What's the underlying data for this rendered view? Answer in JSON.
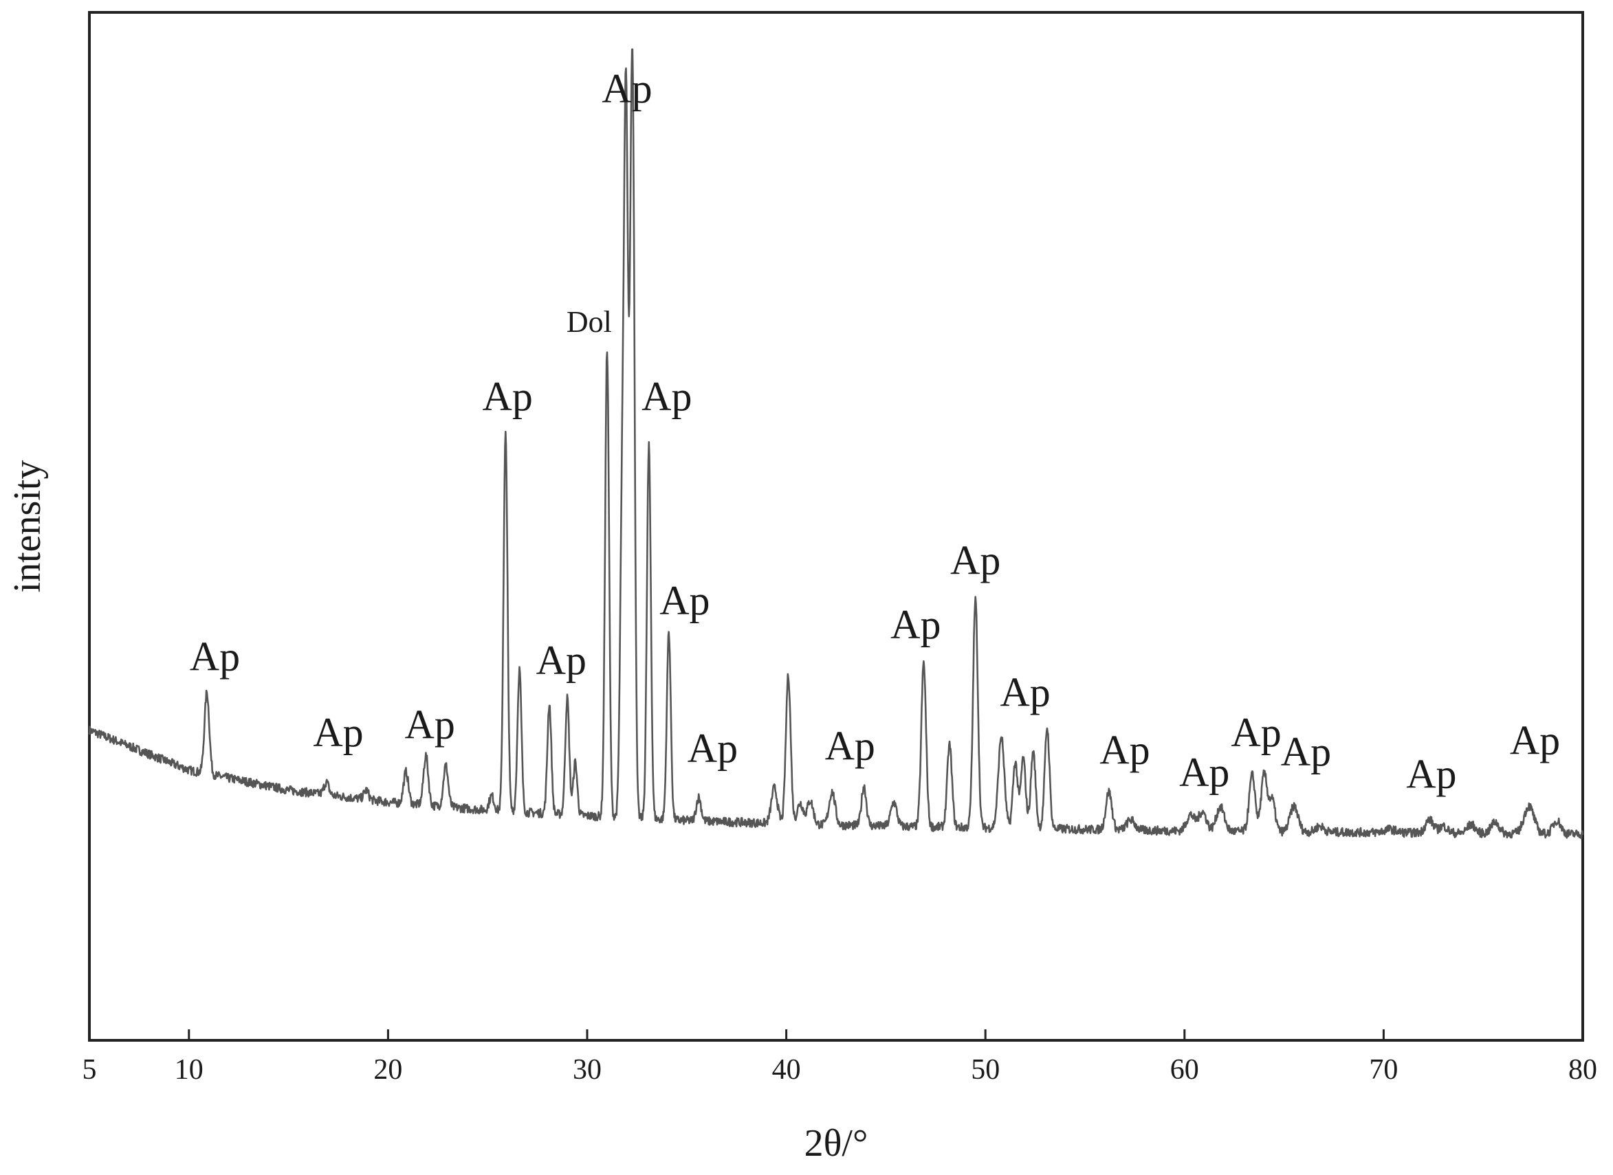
{
  "chart_data": {
    "type": "line",
    "title": "",
    "xlabel": "2θ/°",
    "ylabel": "intensity",
    "xlim": [
      5,
      80
    ],
    "ylim": [
      0,
      100
    ],
    "x_ticks": [
      5,
      10,
      20,
      30,
      40,
      50,
      60,
      70,
      80
    ],
    "x_tick_labels": [
      "5",
      "10",
      "20",
      "30",
      "40",
      "50",
      "60",
      "70",
      "80"
    ],
    "y_ticks_shown": false,
    "grid": false,
    "legend": "none",
    "line_color": "#555555",
    "series": [
      {
        "name": "",
        "baseline": [
          [
            5,
            24.0
          ],
          [
            10,
            19.0
          ],
          [
            15,
            16.5
          ],
          [
            20,
            15.0
          ],
          [
            25,
            14.0
          ],
          [
            30,
            13.3
          ],
          [
            35,
            12.7
          ],
          [
            40,
            12.3
          ],
          [
            45,
            12.0
          ],
          [
            50,
            11.8
          ],
          [
            55,
            11.6
          ],
          [
            60,
            11.4
          ],
          [
            65,
            11.3
          ],
          [
            70,
            11.2
          ],
          [
            75,
            11.1
          ],
          [
            80,
            11.0
          ]
        ],
        "peaks": [
          [
            10.9,
            28.7,
            0.12
          ],
          [
            16.9,
            17.5,
            0.12
          ],
          [
            18.9,
            16.5,
            0.12
          ],
          [
            20.9,
            18.8,
            0.12
          ],
          [
            21.9,
            20.8,
            0.12
          ],
          [
            22.9,
            19.6,
            0.12
          ],
          [
            25.2,
            15.8,
            0.12
          ],
          [
            25.9,
            61.0,
            0.1
          ],
          [
            26.6,
            31.6,
            0.1
          ],
          [
            28.1,
            27.3,
            0.1
          ],
          [
            29.0,
            28.0,
            0.1
          ],
          [
            29.4,
            20.0,
            0.1
          ],
          [
            31.0,
            71.5,
            0.1
          ],
          [
            31.75,
            49.0,
            0.1
          ],
          [
            31.95,
            100.0,
            0.1
          ],
          [
            32.2,
            55.0,
            0.1
          ],
          [
            32.3,
            79.4,
            0.1
          ],
          [
            33.1,
            59.5,
            0.1
          ],
          [
            34.1,
            36.3,
            0.1
          ],
          [
            35.6,
            15.6,
            0.12
          ],
          [
            39.4,
            16.8,
            0.15
          ],
          [
            40.1,
            30.9,
            0.12
          ],
          [
            40.7,
            14.9,
            0.15
          ],
          [
            41.2,
            15.2,
            0.15
          ],
          [
            42.3,
            16.3,
            0.15
          ],
          [
            43.9,
            17.0,
            0.12
          ],
          [
            45.4,
            15.0,
            0.15
          ],
          [
            46.9,
            32.4,
            0.12
          ],
          [
            48.2,
            22.2,
            0.12
          ],
          [
            49.5,
            40.3,
            0.12
          ],
          [
            50.8,
            23.2,
            0.15
          ],
          [
            51.5,
            20.0,
            0.12
          ],
          [
            51.9,
            20.5,
            0.12
          ],
          [
            52.4,
            21.3,
            0.12
          ],
          [
            53.1,
            24.3,
            0.12
          ],
          [
            56.2,
            16.3,
            0.15
          ],
          [
            57.3,
            12.8,
            0.2
          ],
          [
            60.3,
            13.4,
            0.2
          ],
          [
            60.9,
            13.8,
            0.2
          ],
          [
            61.8,
            14.4,
            0.2
          ],
          [
            63.4,
            18.4,
            0.15
          ],
          [
            64.0,
            18.5,
            0.15
          ],
          [
            64.4,
            15.3,
            0.15
          ],
          [
            65.5,
            14.5,
            0.2
          ],
          [
            66.8,
            12.0,
            0.2
          ],
          [
            70.3,
            11.6,
            0.3
          ],
          [
            72.3,
            12.8,
            0.2
          ],
          [
            73.0,
            12.0,
            0.2
          ],
          [
            74.4,
            12.2,
            0.2
          ],
          [
            75.6,
            12.5,
            0.2
          ],
          [
            77.3,
            14.5,
            0.25
          ],
          [
            78.7,
            12.7,
            0.2
          ]
        ]
      }
    ],
    "annotations": [
      {
        "text": "Ap",
        "x": 11.3,
        "y": 31.5
      },
      {
        "text": "Ap",
        "x": 17.5,
        "y": 22.0
      },
      {
        "text": "Ap",
        "x": 22.1,
        "y": 23.0
      },
      {
        "text": "Ap",
        "x": 26.0,
        "y": 64.0
      },
      {
        "text": "Ap",
        "x": 28.7,
        "y": 31.0
      },
      {
        "text": "Dol",
        "x": 30.1,
        "y": 73.8
      },
      {
        "text": "Ap",
        "x": 32.0,
        "y": 102.5
      },
      {
        "text": "Ap",
        "x": 34.0,
        "y": 64.0
      },
      {
        "text": "Ap",
        "x": 34.9,
        "y": 38.5
      },
      {
        "text": "Ap",
        "x": 36.3,
        "y": 20.0
      },
      {
        "text": "Ap",
        "x": 43.2,
        "y": 20.3
      },
      {
        "text": "Ap",
        "x": 46.5,
        "y": 35.5
      },
      {
        "text": "Ap",
        "x": 49.5,
        "y": 43.5
      },
      {
        "text": "Ap",
        "x": 52.0,
        "y": 27.0
      },
      {
        "text": "Ap",
        "x": 57.0,
        "y": 19.8
      },
      {
        "text": "Ap",
        "x": 61.0,
        "y": 17.0
      },
      {
        "text": "Ap",
        "x": 63.6,
        "y": 22.0
      },
      {
        "text": "Ap",
        "x": 66.1,
        "y": 19.6
      },
      {
        "text": "Ap",
        "x": 72.4,
        "y": 16.8
      },
      {
        "text": "Ap",
        "x": 77.6,
        "y": 21.0
      }
    ]
  }
}
